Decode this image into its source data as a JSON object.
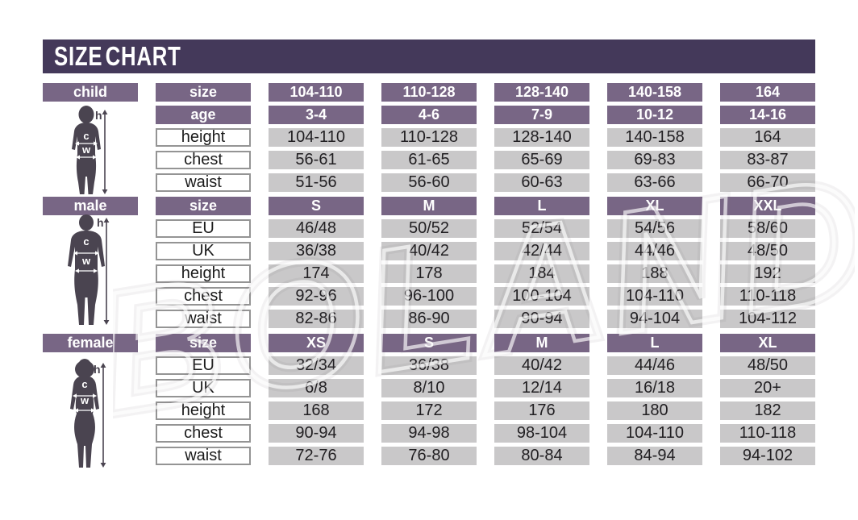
{
  "title": "SIZE CHART",
  "watermark": "BOLAND",
  "figure_labels": {
    "height": "h",
    "chest": "c",
    "waist": "w"
  },
  "colors": {
    "purple_dark": "#44395a",
    "purple_mid": "#786685",
    "cell_gray": "#c9c8c9",
    "text_dark": "#211f22",
    "silhouette": "#4a4450"
  },
  "sections": [
    {
      "name": "child",
      "label": "child",
      "rows": [
        {
          "label": "size",
          "type": "header",
          "values": [
            "104-110",
            "110-128",
            "128-140",
            "140-158",
            "164"
          ]
        },
        {
          "label": "age",
          "type": "header",
          "values": [
            "3-4",
            "4-6",
            "7-9",
            "10-12",
            "14-16"
          ]
        },
        {
          "label": "height",
          "type": "data",
          "values": [
            "104-110",
            "110-128",
            "128-140",
            "140-158",
            "164"
          ]
        },
        {
          "label": "chest",
          "type": "data",
          "values": [
            "56-61",
            "61-65",
            "65-69",
            "69-83",
            "83-87"
          ]
        },
        {
          "label": "waist",
          "type": "data",
          "values": [
            "51-56",
            "56-60",
            "60-63",
            "63-66",
            "66-70"
          ]
        }
      ]
    },
    {
      "name": "male",
      "label": "male",
      "rows": [
        {
          "label": "size",
          "type": "header",
          "values": [
            "S",
            "M",
            "L",
            "XL",
            "XXL"
          ]
        },
        {
          "label": "EU",
          "type": "data",
          "values": [
            "46/48",
            "50/52",
            "52/54",
            "54/56",
            "58/60"
          ]
        },
        {
          "label": "UK",
          "type": "data",
          "values": [
            "36/38",
            "40/42",
            "42/44",
            "44/46",
            "48/50"
          ]
        },
        {
          "label": "height",
          "type": "data",
          "values": [
            "174",
            "178",
            "184",
            "188",
            "192"
          ]
        },
        {
          "label": "chest",
          "type": "data",
          "values": [
            "92-96",
            "96-100",
            "100-104",
            "104-110",
            "110-118"
          ]
        },
        {
          "label": "waist",
          "type": "data",
          "values": [
            "82-86",
            "86-90",
            "90-94",
            "94-104",
            "104-112"
          ]
        }
      ]
    },
    {
      "name": "female",
      "label": "female",
      "rows": [
        {
          "label": "size",
          "type": "header",
          "values": [
            "XS",
            "S",
            "M",
            "L",
            "XL"
          ]
        },
        {
          "label": "EU",
          "type": "data",
          "values": [
            "32/34",
            "36/38",
            "40/42",
            "44/46",
            "48/50"
          ]
        },
        {
          "label": "UK",
          "type": "data",
          "values": [
            "6/8",
            "8/10",
            "12/14",
            "16/18",
            "20+"
          ]
        },
        {
          "label": "height",
          "type": "data",
          "values": [
            "168",
            "172",
            "176",
            "180",
            "182"
          ]
        },
        {
          "label": "chest",
          "type": "data",
          "values": [
            "90-94",
            "94-98",
            "98-104",
            "104-110",
            "110-118"
          ]
        },
        {
          "label": "waist",
          "type": "data",
          "values": [
            "72-76",
            "76-80",
            "80-84",
            "84-94",
            "94-102"
          ]
        }
      ]
    }
  ]
}
